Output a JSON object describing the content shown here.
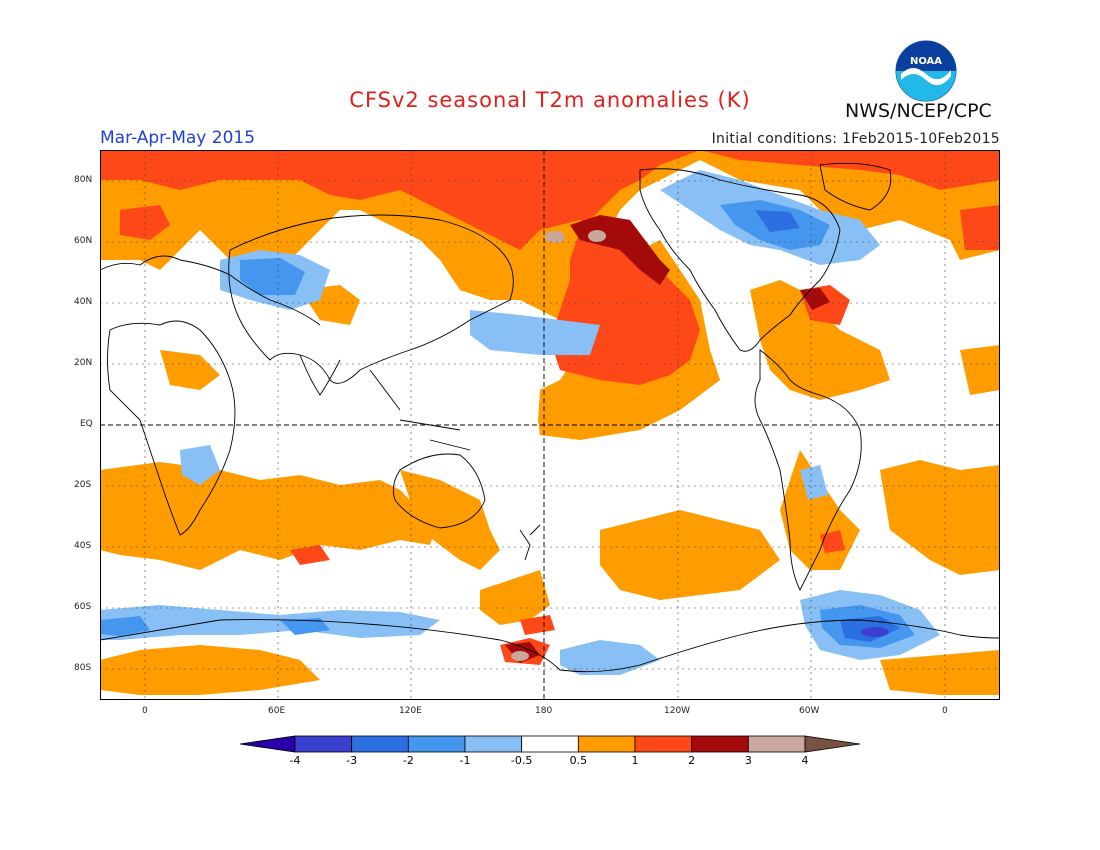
{
  "header": {
    "title": "CFSv2 seasonal T2m anomalies (K)",
    "season": "Mar-Apr-May 2015",
    "initial_conditions": "Initial conditions: 1Feb2015-10Feb2015",
    "agency": "NWS/NCEP/CPC",
    "logo_text": "NOAA"
  },
  "map": {
    "lat_labels": [
      "80N",
      "60N",
      "40N",
      "20N",
      "EQ",
      "20S",
      "40S",
      "60S",
      "80S"
    ],
    "lon_labels": [
      "0",
      "60E",
      "120E",
      "180",
      "120W",
      "60W",
      "0"
    ]
  },
  "colorbar": {
    "labels": [
      "-4",
      "-3",
      "-2",
      "-1",
      "-0.5",
      "0.5",
      "1",
      "2",
      "3",
      "4"
    ],
    "colors": [
      "#2a00a8",
      "#3a40d0",
      "#2b6fe0",
      "#4596ee",
      "#88bff5",
      "#ffffff",
      "#ff9c00",
      "#ff4818",
      "#a50a0a",
      "#c8a89c",
      "#7a5040"
    ]
  },
  "colors": {
    "title": "#e0201a",
    "season": "#1f3fd6"
  }
}
